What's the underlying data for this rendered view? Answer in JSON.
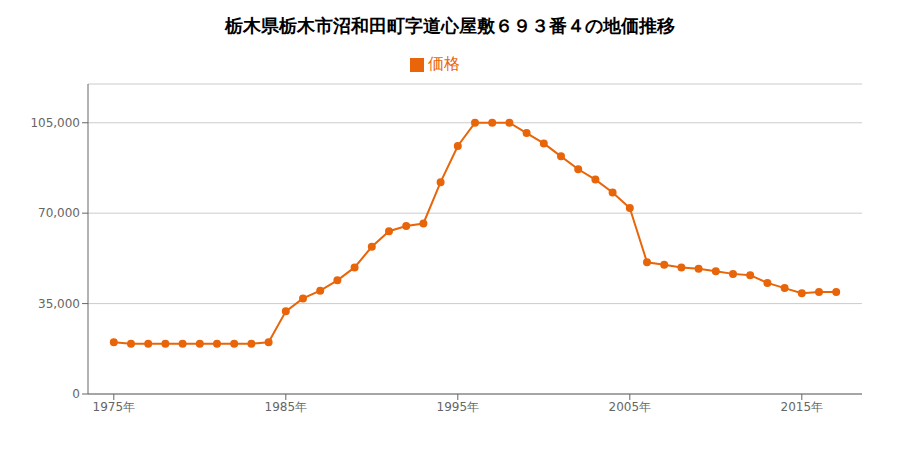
{
  "chart_data": {
    "type": "line",
    "title": "栃木県栃木市沼和田町字道心屋敷６９３番４の地価推移",
    "x": [
      1975,
      1976,
      1977,
      1978,
      1979,
      1980,
      1981,
      1982,
      1983,
      1984,
      1985,
      1986,
      1987,
      1988,
      1989,
      1990,
      1991,
      1992,
      1993,
      1994,
      1995,
      1996,
      1997,
      1998,
      1999,
      2000,
      2001,
      2002,
      2003,
      2004,
      2005,
      2006,
      2007,
      2008,
      2009,
      2010,
      2011,
      2012,
      2013,
      2014,
      2015,
      2016,
      2017
    ],
    "series": [
      {
        "name": "価格",
        "color": "#e8650a",
        "marker": "circle",
        "values": [
          20000,
          19500,
          19500,
          19500,
          19500,
          19500,
          19500,
          19500,
          19500,
          20000,
          32000,
          37000,
          40000,
          44000,
          49000,
          57000,
          63000,
          65000,
          66000,
          82000,
          96000,
          105000,
          105000,
          105000,
          101000,
          97000,
          92000,
          87000,
          83000,
          78000,
          72000,
          51000,
          50000,
          49000,
          48500,
          47500,
          46500,
          46000,
          43000,
          41000,
          39000,
          39500,
          39500
        ]
      }
    ],
    "xlim": [
      1973.5,
      2018.5
    ],
    "xticks": [
      {
        "value": 1975,
        "label": "1975年"
      },
      {
        "value": 1985,
        "label": "1985年"
      },
      {
        "value": 1995,
        "label": "1995年"
      },
      {
        "value": 2005,
        "label": "2005年"
      },
      {
        "value": 2015,
        "label": "2015年"
      }
    ],
    "ylim": [
      0,
      120000
    ],
    "yticks": [
      0,
      {
        "value": 35000,
        "label": "35,000"
      },
      {
        "value": 70000,
        "label": "70,000"
      },
      {
        "value": 105000,
        "label": "105,000"
      }
    ],
    "grid": true,
    "legend": "top"
  }
}
